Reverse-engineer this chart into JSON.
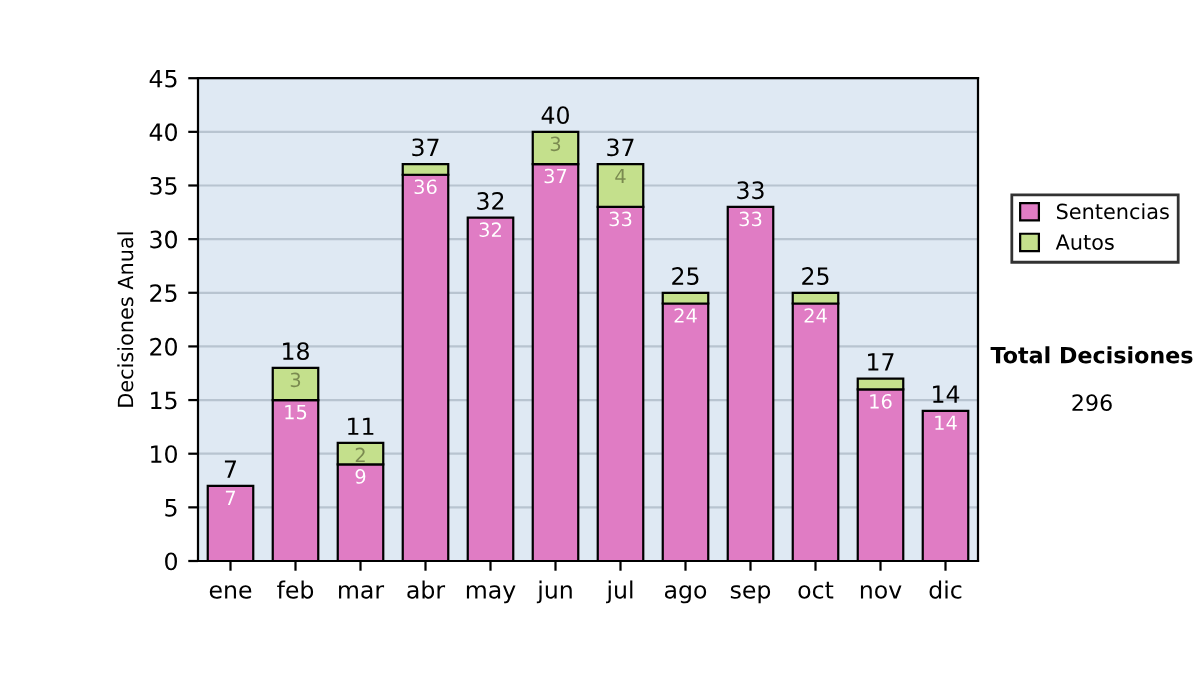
{
  "chart_data": {
    "type": "bar",
    "stacked": true,
    "ylabel": "Decisiones Anual",
    "categories": [
      "ene",
      "feb",
      "mar",
      "abr",
      "may",
      "jun",
      "jul",
      "ago",
      "sep",
      "oct",
      "nov",
      "dic"
    ],
    "series": [
      {
        "name": "Sentencias",
        "color": "#e07cc4",
        "values": [
          7,
          15,
          9,
          36,
          32,
          37,
          33,
          24,
          33,
          24,
          16,
          14
        ],
        "value_labels": [
          "7",
          "15",
          "9",
          "36",
          "32",
          "37",
          "33",
          "24",
          "33",
          "24",
          "16",
          "14"
        ]
      },
      {
        "name": "Autos",
        "color": "#c4e08c",
        "values": [
          null,
          3,
          2,
          1,
          null,
          3,
          4,
          1,
          null,
          1,
          1,
          null
        ],
        "value_labels": [
          null,
          "3",
          "2",
          null,
          null,
          "3",
          "4",
          null,
          null,
          null,
          null,
          null
        ]
      }
    ],
    "totals": [
      "7",
      "18",
      "11",
      "37",
      "32",
      "40",
      "37",
      "25",
      "33",
      "25",
      "17",
      "14"
    ],
    "ylim": [
      0,
      45
    ],
    "yticks": [
      0,
      5,
      10,
      15,
      20,
      25,
      30,
      35,
      40,
      45
    ],
    "grid": "y",
    "legend": "right",
    "annotations": [
      "Total Decisiones",
      "296"
    ]
  }
}
